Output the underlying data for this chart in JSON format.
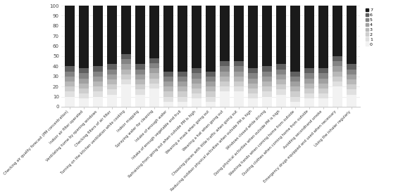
{
  "categories": [
    "Checking air quality forecast (PM concentration)",
    "Indoor air filter operated",
    "Ventilating home by opening windows",
    "Checking filters of air filter",
    "Turning on the kitchen ventilation while cooking",
    "Indoor mopping",
    "Spraying water for cleaning",
    "Intake of enough water",
    "Intake of enough vegetable and fruit",
    "Refraining from going out when outside PM is high",
    "Wearing a mask when going out",
    "Wearing a hat when going out",
    "Choosing places with little traffic when going out",
    "Reducing outdoor physical activities when outside PM is high",
    "Windows closed while driving",
    "Doing physical activities when outside PM is high",
    "Washing hands when coming home from outside",
    "Dusting clothes when coming home from outside",
    "Avoiding secondhand smoke",
    "Emergency drugs equipped and used when necessary",
    "Using the inhaler regularly"
  ],
  "segments": {
    "0": [
      10,
      8,
      10,
      12,
      22,
      12,
      18,
      5,
      5,
      8,
      5,
      15,
      15,
      8,
      10,
      12,
      5,
      8,
      8,
      20,
      12
    ],
    "1": [
      5,
      5,
      5,
      5,
      5,
      5,
      5,
      5,
      5,
      5,
      5,
      5,
      5,
      5,
      5,
      5,
      5,
      5,
      5,
      5,
      5
    ],
    "2": [
      5,
      5,
      5,
      5,
      5,
      5,
      5,
      5,
      5,
      5,
      5,
      5,
      5,
      5,
      5,
      5,
      5,
      5,
      5,
      5,
      5
    ],
    "3": [
      5,
      5,
      5,
      5,
      5,
      5,
      5,
      5,
      5,
      5,
      5,
      5,
      5,
      5,
      5,
      5,
      5,
      5,
      5,
      5,
      5
    ],
    "4": [
      5,
      5,
      5,
      5,
      5,
      5,
      5,
      5,
      5,
      5,
      5,
      5,
      5,
      5,
      5,
      5,
      5,
      5,
      5,
      5,
      5
    ],
    "5": [
      5,
      5,
      5,
      5,
      5,
      5,
      5,
      5,
      5,
      5,
      5,
      5,
      5,
      5,
      5,
      5,
      5,
      5,
      5,
      5,
      5
    ],
    "6": [
      5,
      5,
      5,
      5,
      5,
      5,
      5,
      5,
      5,
      5,
      5,
      5,
      5,
      5,
      5,
      5,
      5,
      5,
      5,
      5,
      5
    ],
    "7": [
      60,
      62,
      60,
      58,
      48,
      58,
      52,
      65,
      65,
      62,
      65,
      55,
      55,
      62,
      60,
      58,
      65,
      62,
      62,
      55,
      58
    ]
  },
  "colors": [
    "#f2f2f2",
    "#e0e0e0",
    "#cecece",
    "#b8b8b8",
    "#a0a0a0",
    "#848484",
    "#606060",
    "#1a1a1a"
  ],
  "legend_labels": [
    "0",
    "1",
    "2",
    "3",
    "4",
    "5",
    "6",
    "7"
  ],
  "ylim": [
    0,
    100
  ],
  "yticks": [
    0,
    10,
    20,
    30,
    40,
    50,
    60,
    70,
    80,
    90,
    100
  ],
  "figsize": [
    5.82,
    2.79
  ],
  "dpi": 100
}
